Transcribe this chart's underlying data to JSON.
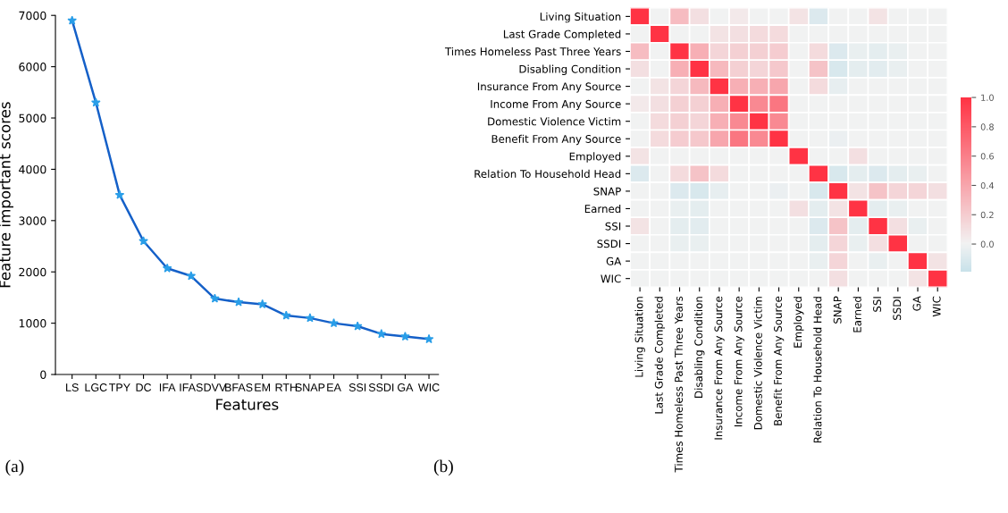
{
  "chart_data": [
    {
      "type": "line",
      "xlabel": "Features",
      "ylabel": "Feature important scores",
      "categories": [
        "LS",
        "LGC",
        "TPY",
        "DC",
        "IFA",
        "IFAS",
        "DVV",
        "BFAS",
        "EM",
        "RTH",
        "SNAP",
        "EA",
        "SSI",
        "SSDI",
        "GA",
        "WIC"
      ],
      "series": [
        {
          "color": "#1560c8",
          "values": [
            6900,
            5300,
            3500,
            2600,
            2070,
            1920,
            1480,
            1410,
            1370,
            1150,
            1100,
            1000,
            940,
            790,
            740,
            690
          ]
        }
      ],
      "ylim": [
        0,
        7000
      ],
      "yticks": [
        0,
        1000,
        2000,
        3000,
        4000,
        5000,
        6000,
        7000
      ],
      "grid": false,
      "marker": "star",
      "line_style": "solid",
      "annotations": [
        "(a)"
      ]
    },
    {
      "type": "heatmap",
      "categories": [
        "Living Situation",
        "Last Grade Completed",
        "Times Homeless Past Three Years",
        "Disabling Condition",
        "Insurance From Any Source",
        "Income From Any Source",
        "Domestic Violence Victim",
        "Benefit From Any Source",
        "Employed",
        "Relation To Household Head",
        "SNAP",
        "Earned",
        "SSI",
        "SSDI",
        "GA",
        "WIC"
      ],
      "y_categories": [
        "Living Situation",
        "Last Grade Completed",
        "Times Homeless Past Three Years",
        "Disabling Condition",
        "Insurance From Any Source",
        "Income From Any Source",
        "Domestic Violence Victim",
        "Benefit From Any Source",
        "Employed",
        "Relation To Household Head",
        "SNAP",
        "Earned",
        "SSI",
        "SSDI",
        "GA",
        "WIC"
      ],
      "cells": [
        [
          1,
          0,
          0.28,
          0.1,
          0,
          0.05,
          0,
          0,
          0.08,
          -0.1,
          0,
          0,
          0.08,
          0,
          0,
          0
        ],
        [
          0,
          1,
          0,
          0,
          0.08,
          0.1,
          0.12,
          0.12,
          0,
          0,
          0,
          0,
          0,
          0,
          0,
          0
        ],
        [
          0.28,
          0,
          1,
          0.35,
          0.15,
          0.18,
          0.18,
          0.2,
          0,
          0.12,
          -0.1,
          -0.04,
          -0.06,
          -0.04,
          0,
          0
        ],
        [
          0.1,
          0,
          0.35,
          1,
          0.3,
          0.18,
          0.15,
          0.22,
          0,
          0.25,
          -0.12,
          -0.06,
          -0.07,
          -0.04,
          0,
          0
        ],
        [
          0,
          0.08,
          0.15,
          0.3,
          1,
          0.35,
          0.35,
          0.4,
          0,
          0.12,
          -0.05,
          0,
          0,
          0,
          0,
          0
        ],
        [
          0.05,
          0.1,
          0.18,
          0.18,
          0.35,
          1,
          0.55,
          0.65,
          0,
          0,
          0,
          0,
          0,
          0,
          0,
          0
        ],
        [
          0,
          0.12,
          0.18,
          0.15,
          0.35,
          0.55,
          1,
          0.55,
          0,
          0,
          0,
          0,
          0,
          0,
          0,
          0
        ],
        [
          0,
          0.12,
          0.2,
          0.22,
          0.4,
          0.65,
          0.55,
          1,
          0,
          0,
          -0.03,
          0,
          0,
          0,
          0,
          0
        ],
        [
          0.08,
          0,
          0,
          0,
          0,
          0,
          0,
          0,
          1,
          0,
          0,
          0.1,
          0,
          0,
          0,
          0
        ],
        [
          -0.1,
          0,
          0.12,
          0.25,
          0.12,
          0,
          0,
          0,
          0,
          1,
          -0.12,
          -0.06,
          -0.1,
          -0.06,
          -0.04,
          0
        ],
        [
          0,
          0,
          -0.1,
          -0.12,
          -0.05,
          0,
          0,
          -0.03,
          0,
          -0.12,
          1,
          0.08,
          0.25,
          0.15,
          0.15,
          0.1
        ],
        [
          0,
          0,
          -0.04,
          -0.06,
          0,
          0,
          0,
          0,
          0.1,
          -0.06,
          0.08,
          1,
          -0.06,
          -0.04,
          0,
          0
        ],
        [
          0.08,
          0,
          -0.06,
          -0.07,
          0,
          0,
          0,
          0,
          0,
          -0.1,
          0.25,
          -0.06,
          1,
          0.1,
          -0.04,
          0
        ],
        [
          0,
          0,
          -0.04,
          -0.04,
          0,
          0,
          0,
          0,
          0,
          -0.06,
          0.15,
          -0.04,
          0.1,
          1,
          0,
          0
        ],
        [
          0,
          0,
          0,
          0,
          0,
          0,
          0,
          0,
          0,
          -0.04,
          0.15,
          0,
          -0.04,
          0,
          1,
          0.08
        ],
        [
          0,
          0,
          0,
          0,
          0,
          0,
          0,
          0,
          0,
          0,
          0.1,
          0,
          0,
          0,
          0.08,
          1
        ]
      ],
      "clim": [
        -0.19,
        1.0
      ],
      "cticks": [
        {
          "value": 0,
          "label": "0.0"
        },
        {
          "value": 0.2,
          "label": "0.2"
        },
        {
          "value": 0.4,
          "label": "0.4"
        },
        {
          "value": 0.6,
          "label": "0.6"
        },
        {
          "value": 0.8,
          "label": "0.8"
        },
        {
          "value": 1.0,
          "label": "1.0"
        }
      ],
      "annotations": [
        "(b)"
      ]
    }
  ]
}
